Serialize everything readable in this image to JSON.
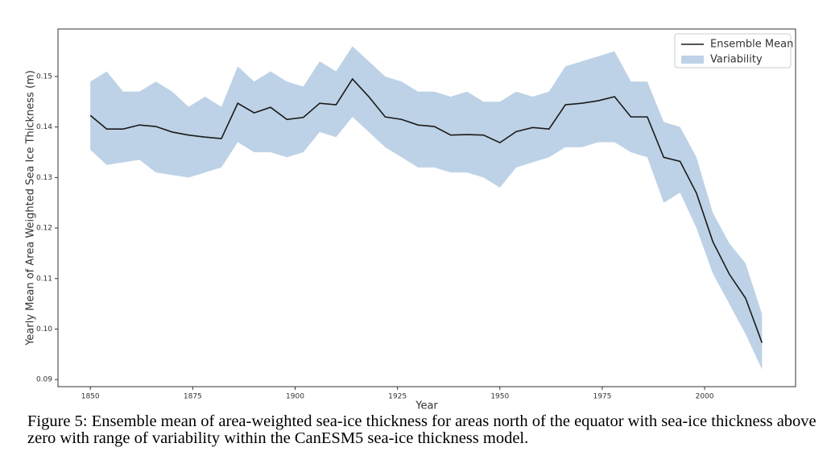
{
  "chart_data": {
    "type": "line",
    "x_label": "Year",
    "y_label": "Yearly Mean of Area Weighted Sea Ice Thickness (m)",
    "caption": "Figure 5: Ensemble mean of area-weighted sea-ice thickness for areas north of the equator with sea-ice thickness above zero with range of variability within the CanESM5 sea-ice thickness model.",
    "x": [
      1850,
      1854,
      1858,
      1862,
      1866,
      1870,
      1874,
      1878,
      1882,
      1886,
      1890,
      1894,
      1898,
      1902,
      1906,
      1910,
      1914,
      1918,
      1922,
      1926,
      1930,
      1934,
      1938,
      1942,
      1946,
      1950,
      1954,
      1958,
      1962,
      1966,
      1970,
      1974,
      1978,
      1982,
      1986,
      1990,
      1994,
      1998,
      2002,
      2006,
      2010,
      2014
    ],
    "series": [
      {
        "name": "Ensemble Mean",
        "color": "#1a1a1a",
        "values": [
          0.1423,
          0.1396,
          0.1396,
          0.1404,
          0.1401,
          0.139,
          0.1384,
          0.138,
          0.1377,
          0.1447,
          0.1428,
          0.1439,
          0.1415,
          0.1419,
          0.1447,
          0.1444,
          0.1495,
          0.146,
          0.142,
          0.1415,
          0.1404,
          0.1401,
          0.1384,
          0.1385,
          0.1384,
          0.1369,
          0.1391,
          0.1399,
          0.1396,
          0.1444,
          0.1447,
          0.1452,
          0.146,
          0.142,
          0.142,
          0.134,
          0.1332,
          0.1269,
          0.1173,
          0.1109,
          0.1061,
          0.0973
        ]
      },
      {
        "name": "Variability",
        "color": "#bdd2e6",
        "upper": [
          0.149,
          0.151,
          0.147,
          0.147,
          0.149,
          0.147,
          0.144,
          0.146,
          0.144,
          0.152,
          0.149,
          0.151,
          0.149,
          0.148,
          0.153,
          0.151,
          0.156,
          0.153,
          0.15,
          0.149,
          0.147,
          0.147,
          0.146,
          0.147,
          0.145,
          0.145,
          0.147,
          0.146,
          0.147,
          0.152,
          0.153,
          0.154,
          0.155,
          0.149,
          0.149,
          0.141,
          0.14,
          0.134,
          0.123,
          0.117,
          0.113,
          0.103
        ],
        "lower": [
          0.1355,
          0.1325,
          0.133,
          0.1335,
          0.131,
          0.1305,
          0.13,
          0.131,
          0.132,
          0.137,
          0.135,
          0.135,
          0.134,
          0.135,
          0.139,
          0.138,
          0.142,
          0.139,
          0.136,
          0.134,
          0.132,
          0.132,
          0.131,
          0.131,
          0.13,
          0.128,
          0.132,
          0.133,
          0.134,
          0.136,
          0.136,
          0.137,
          0.137,
          0.135,
          0.134,
          0.125,
          0.127,
          0.12,
          0.111,
          0.105,
          0.099,
          0.092
        ]
      }
    ],
    "xlim": [
      1842.1,
      2022.2
    ],
    "xticks": [
      1850,
      1875,
      1900,
      1925,
      1950,
      1975,
      2000
    ],
    "ylim": [
      0.0886,
      0.1594
    ],
    "yticks": [
      0.09,
      {
        "value": 0.1,
        "label": "0.10"
      },
      0.11,
      0.12,
      0.13,
      0.14,
      0.15
    ],
    "legend": "upper right"
  }
}
